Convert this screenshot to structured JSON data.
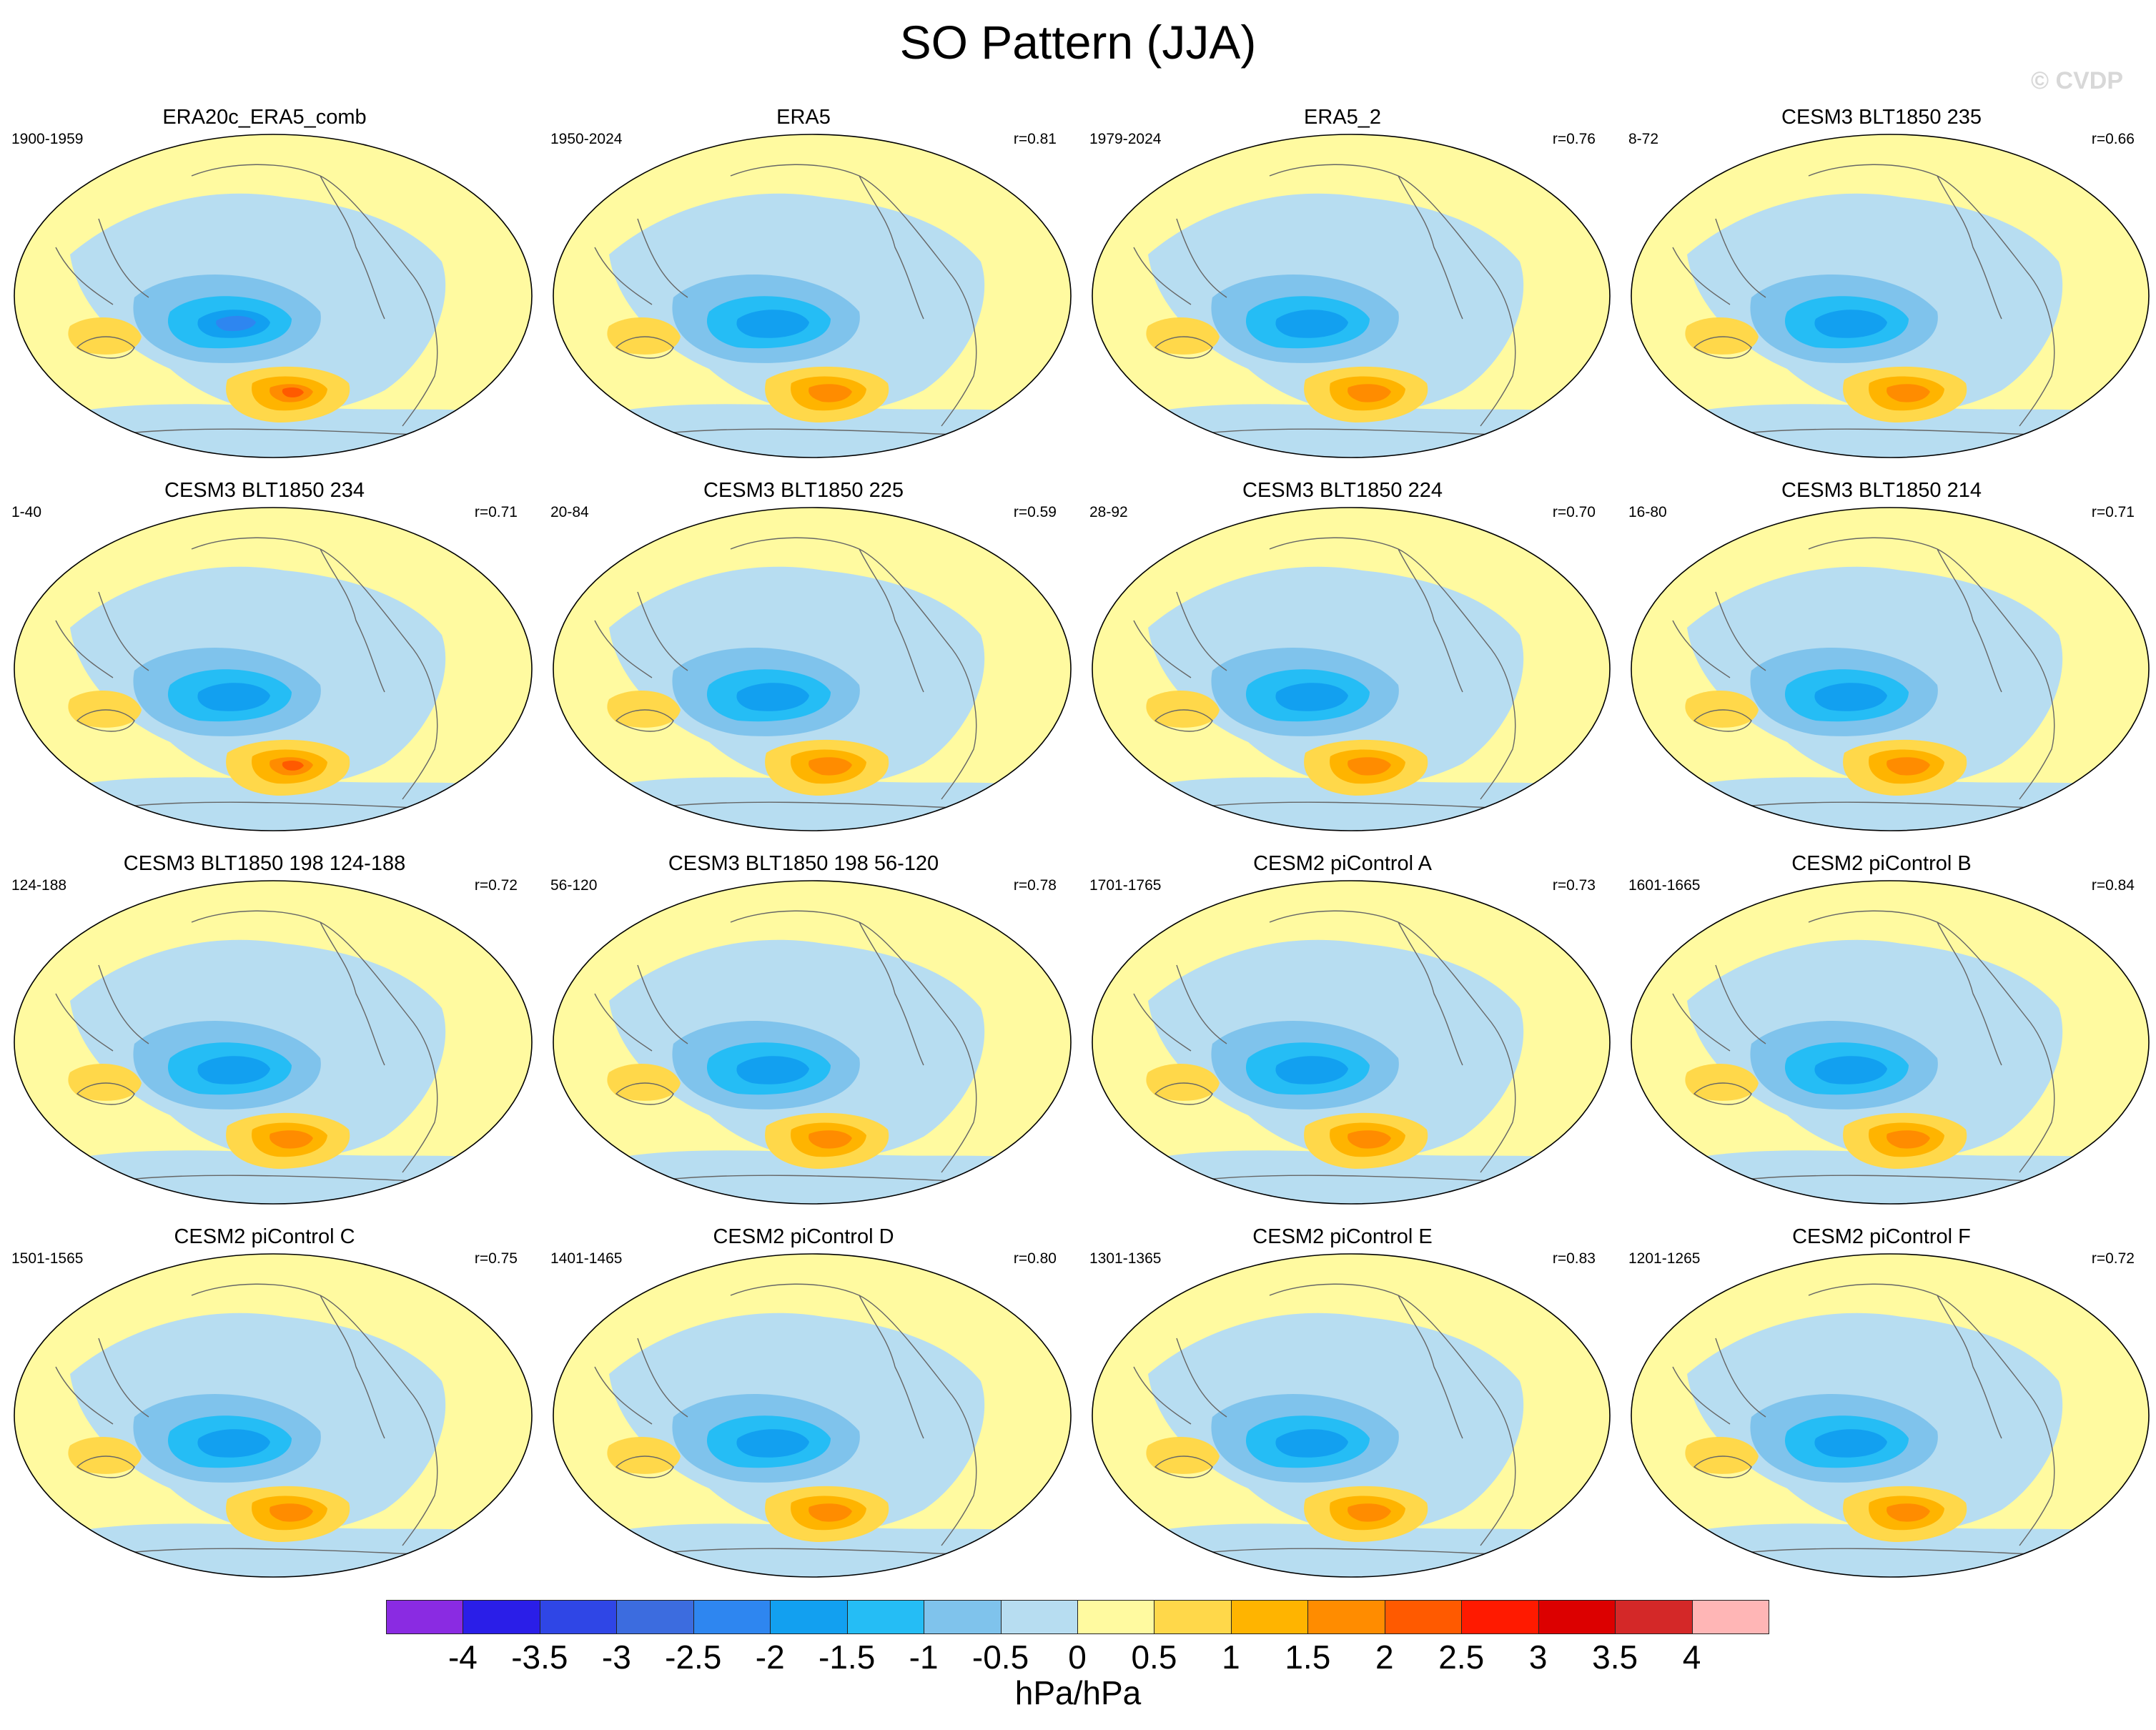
{
  "title": "SO Pattern (JJA)",
  "credit": "© CVDP",
  "colorbar": {
    "colors": [
      "#8a2be2",
      "#2a1ee8",
      "#2f46e6",
      "#3c6cdf",
      "#2e86f0",
      "#12a0f0",
      "#25bdf5",
      "#7fc3ec",
      "#b7ddf1",
      "#fffaa0",
      "#ffd84a",
      "#ffb400",
      "#ff8c00",
      "#ff5a00",
      "#ff1a00",
      "#dc0000",
      "#d42828",
      "#ffb6b6"
    ],
    "ticks": [
      "-4",
      "-3.5",
      "-3",
      "-2.5",
      "-2",
      "-1.5",
      "-1",
      "-0.5",
      "0",
      "0.5",
      "1",
      "1.5",
      "2",
      "2.5",
      "3",
      "3.5",
      "4"
    ],
    "units": "hPa/hPa"
  },
  "panels": [
    {
      "title": "ERA20c_ERA5_comb",
      "years": "1900-1959",
      "r": ""
    },
    {
      "title": "ERA5",
      "years": "1950-2024",
      "r": "r=0.81"
    },
    {
      "title": "ERA5_2",
      "years": "1979-2024",
      "r": "r=0.76"
    },
    {
      "title": "CESM3 BLT1850 235",
      "years": "8-72",
      "r": "r=0.66"
    },
    {
      "title": "CESM3 BLT1850 234",
      "years": "1-40",
      "r": "r=0.71"
    },
    {
      "title": "CESM3 BLT1850 225",
      "years": "20-84",
      "r": "r=0.59"
    },
    {
      "title": "CESM3 BLT1850 224",
      "years": "28-92",
      "r": "r=0.70"
    },
    {
      "title": "CESM3 BLT1850 214",
      "years": "16-80",
      "r": "r=0.71"
    },
    {
      "title": "CESM3 BLT1850 198 124-188",
      "years": "124-188",
      "r": "r=0.72"
    },
    {
      "title": "CESM3 BLT1850 198 56-120",
      "years": "56-120",
      "r": "r=0.78"
    },
    {
      "title": "CESM2 piControl A",
      "years": "1701-1765",
      "r": "r=0.73"
    },
    {
      "title": "CESM2 piControl B",
      "years": "1601-1665",
      "r": "r=0.84"
    },
    {
      "title": "CESM2 piControl C",
      "years": "1501-1565",
      "r": "r=0.75"
    },
    {
      "title": "CESM2 piControl D",
      "years": "1401-1465",
      "r": "r=0.80"
    },
    {
      "title": "CESM2 piControl E",
      "years": "1301-1365",
      "r": "r=0.83"
    },
    {
      "title": "CESM2 piControl F",
      "years": "1201-1265",
      "r": "r=0.72"
    }
  ]
}
